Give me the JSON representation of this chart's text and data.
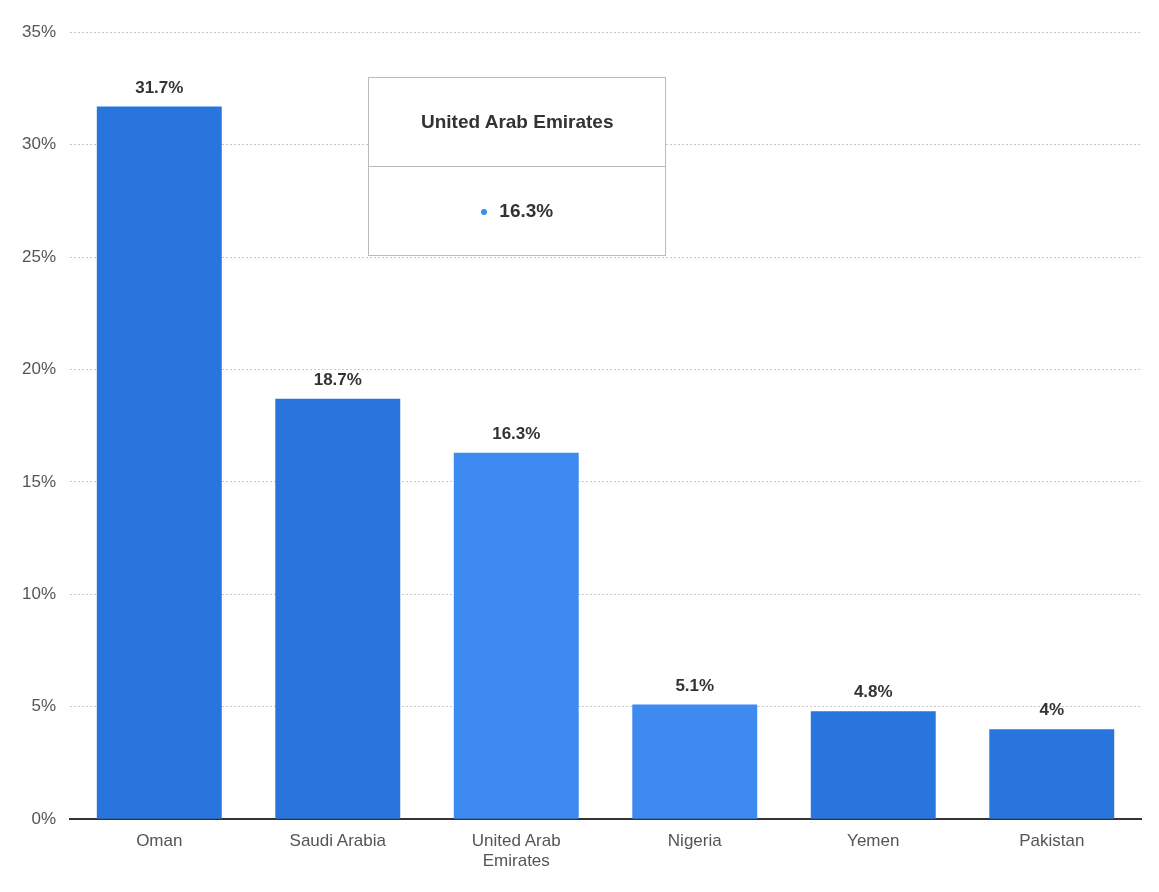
{
  "chart_data": {
    "type": "bar",
    "categories": [
      "Oman",
      "Saudi Arabia",
      "United Arab Emirates",
      "Nigeria",
      "Yemen",
      "Pakistan"
    ],
    "values": [
      31.7,
      18.7,
      16.3,
      5.1,
      4.8,
      4
    ],
    "colors": [
      "#2876dd",
      "#2876dd",
      "#3d8af0",
      "#3d8af0",
      "#2876dd",
      "#2876dd"
    ],
    "value_labels": [
      "31.7%",
      "18.7%",
      "16.3%",
      "5.1%",
      "4.8%",
      "4%"
    ],
    "ylim": [
      0,
      35
    ],
    "yticks": [
      {
        "value": 0,
        "label": "0%"
      },
      {
        "value": 5,
        "label": "5%"
      },
      {
        "value": 10,
        "label": "10%"
      },
      {
        "value": 15,
        "label": "15%"
      },
      {
        "value": 20,
        "label": "20%"
      },
      {
        "value": 25,
        "label": "25%"
      },
      {
        "value": 30,
        "label": "30%"
      },
      {
        "value": 35,
        "label": "35%"
      }
    ],
    "grid": "y",
    "legend": false,
    "annotations": [
      "United Arab Emirates",
      "16.3%"
    ]
  }
}
